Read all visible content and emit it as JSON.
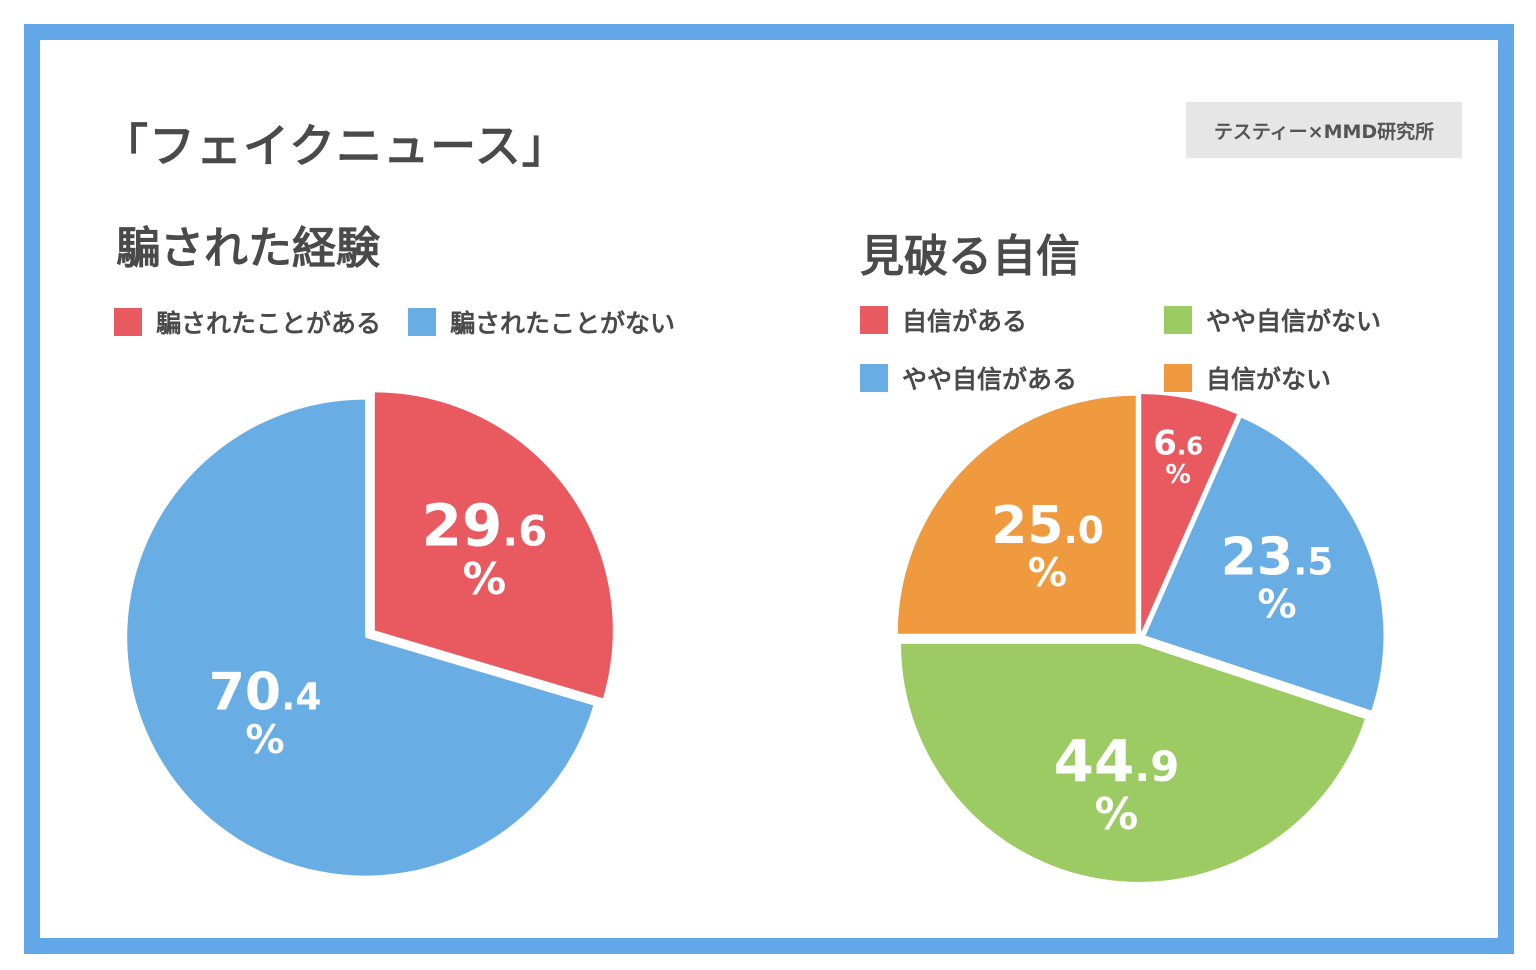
{
  "main_title": "「フェイクニュース」",
  "source": "テスティー×MMD研究所",
  "colors": {
    "red": "#e85a60",
    "blue": "#68ade4",
    "green": "#9bcb62",
    "orange": "#ef9a3e",
    "frame": "#62a8e8"
  },
  "chart_data": [
    {
      "type": "pie",
      "title": "騙された経験",
      "legend_placement": "top",
      "slices": [
        {
          "label": "騙されたことがある",
          "value": 29.6,
          "color": "#e85a60",
          "display_int": "29",
          "display_dec": ".6",
          "unit": "%"
        },
        {
          "label": "騙されたことがない",
          "value": 70.4,
          "color": "#68ade4",
          "display_int": "70",
          "display_dec": ".4",
          "unit": "%"
        }
      ]
    },
    {
      "type": "pie",
      "title": "見破る自信",
      "legend_placement": "top",
      "slices": [
        {
          "label": "自信がある",
          "value": 6.6,
          "color": "#e85a60",
          "display_int": "6",
          "display_dec": ".6",
          "unit": "%"
        },
        {
          "label": "やや自信がある",
          "value": 23.5,
          "color": "#68ade4",
          "display_int": "23",
          "display_dec": ".5",
          "unit": "%"
        },
        {
          "label": "やや自信がない",
          "value": 44.9,
          "color": "#9bcb62",
          "display_int": "44",
          "display_dec": ".9",
          "unit": "%"
        },
        {
          "label": "自信がない",
          "value": 25.0,
          "color": "#ef9a3e",
          "display_int": "25",
          "display_dec": ".0",
          "unit": "%"
        }
      ]
    }
  ]
}
